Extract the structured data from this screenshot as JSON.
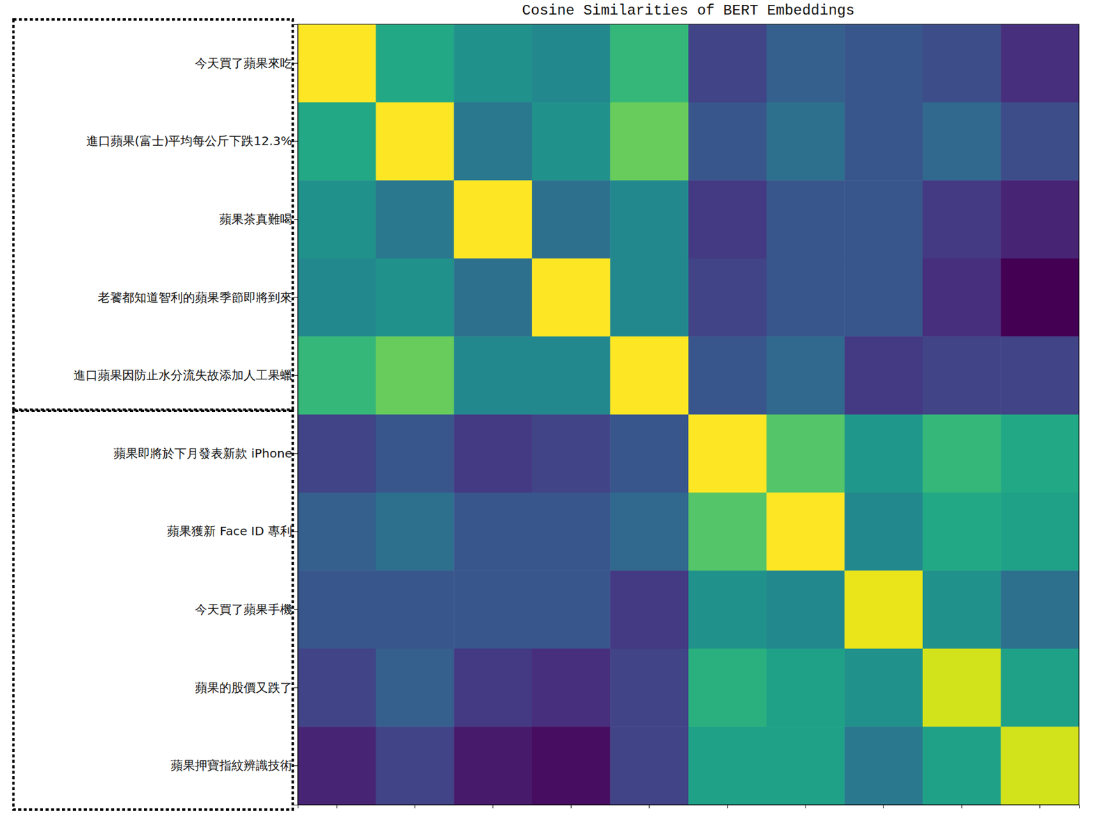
{
  "chart_data": {
    "type": "heatmap",
    "title": "Cosine Similarities of BERT Embeddings",
    "categories": [
      "今天買了蘋果來吃",
      "進口蘋果(富士)平均每公斤下跌12.3%",
      "蘋果茶真難喝",
      "老饕都知道智利的蘋果季節即將到來",
      "進口蘋果因防止水分流失故添加人工果蠟",
      "蘋果即將於下月發表新款 iPhone",
      "蘋果獲新 Face ID 專利",
      "今天買了蘋果手機",
      "蘋果的股價又跌了",
      "蘋果押寶指紋辨識技術"
    ],
    "cells": [
      [
        1.0,
        0.88,
        0.85,
        0.84,
        0.9,
        0.76,
        0.79,
        0.78,
        0.77,
        0.74
      ],
      [
        0.88,
        1.0,
        0.82,
        0.85,
        0.93,
        0.78,
        0.81,
        0.78,
        0.8,
        0.77
      ],
      [
        0.85,
        0.82,
        1.0,
        0.81,
        0.84,
        0.75,
        0.78,
        0.78,
        0.75,
        0.73
      ],
      [
        0.84,
        0.85,
        0.81,
        1.0,
        0.84,
        0.76,
        0.78,
        0.78,
        0.74,
        0.7
      ],
      [
        0.9,
        0.93,
        0.84,
        0.84,
        1.0,
        0.78,
        0.8,
        0.75,
        0.76,
        0.76
      ],
      [
        0.76,
        0.78,
        0.75,
        0.76,
        0.78,
        1.0,
        0.92,
        0.86,
        0.9,
        0.88
      ],
      [
        0.79,
        0.81,
        0.78,
        0.78,
        0.8,
        0.92,
        1.0,
        0.84,
        0.88,
        0.87
      ],
      [
        0.78,
        0.78,
        0.78,
        0.78,
        0.75,
        0.85,
        0.84,
        0.99,
        0.85,
        0.81
      ],
      [
        0.76,
        0.79,
        0.75,
        0.74,
        0.76,
        0.89,
        0.87,
        0.85,
        0.98,
        0.87
      ],
      [
        0.73,
        0.76,
        0.72,
        0.71,
        0.76,
        0.87,
        0.87,
        0.82,
        0.87,
        0.98
      ]
    ],
    "tick_labels": "y"
  }
}
